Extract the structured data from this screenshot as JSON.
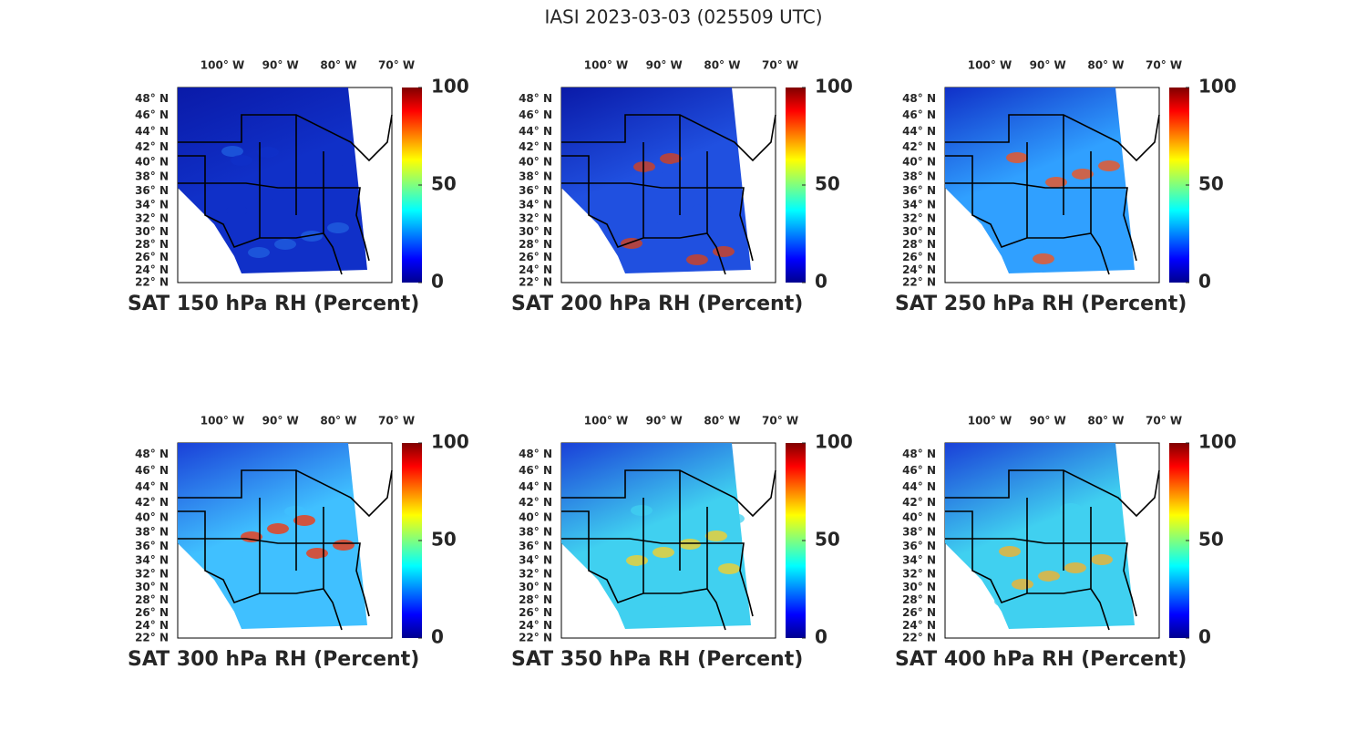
{
  "title": "IASI 2023-03-03 (025509 UTC)",
  "panels": [
    {
      "title": "SAT 150 hPa RH (Percent)"
    },
    {
      "title": "SAT 200 hPa RH (Percent)"
    },
    {
      "title": "SAT 250 hPa RH (Percent)"
    },
    {
      "title": "SAT 300 hPa RH (Percent)"
    },
    {
      "title": "SAT 350 hPa RH (Percent)"
    },
    {
      "title": "SAT 400 hPa RH (Percent)"
    }
  ],
  "lonlim": [
    -107.7,
    -70.8
  ],
  "lon_ticks": [
    {
      "value": -100,
      "label": "100° W"
    },
    {
      "value": -90,
      "label": "90° W"
    },
    {
      "value": -80,
      "label": "80° W"
    },
    {
      "value": -70,
      "label": "70° W"
    }
  ],
  "latlim": [
    22,
    49.3
  ],
  "lat_ticks": [
    {
      "value": 48,
      "label": "48° N"
    },
    {
      "value": 46,
      "label": "46° N"
    },
    {
      "value": 44,
      "label": "44° N"
    },
    {
      "value": 42,
      "label": "42° N"
    },
    {
      "value": 40,
      "label": "40° N"
    },
    {
      "value": 38,
      "label": "38° N"
    },
    {
      "value": 36,
      "label": "36° N"
    },
    {
      "value": 34,
      "label": "34° N"
    },
    {
      "value": 32,
      "label": "32° N"
    },
    {
      "value": 30,
      "label": "30° N"
    },
    {
      "value": 28,
      "label": "28° N"
    },
    {
      "value": 26,
      "label": "26° N"
    },
    {
      "value": 24,
      "label": "24° N"
    },
    {
      "value": 22,
      "label": "22° N"
    }
  ],
  "clim": [
    0,
    100
  ],
  "colorbar_ticks": [
    0,
    50,
    100
  ]
}
